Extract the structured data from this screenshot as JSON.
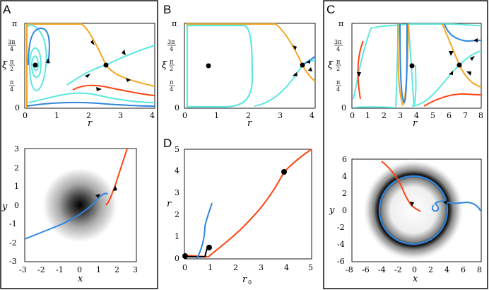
{
  "panels": {
    "A": "A",
    "B": "B",
    "C": "C",
    "D": "D"
  },
  "colors": {
    "orange": "#f5a623",
    "cyan": "#5ce8e0",
    "blue": "#2e86de",
    "red": "#ff4411",
    "black": "#000000"
  },
  "labels": {
    "xi": "ξ",
    "r": "r",
    "x": "x",
    "y": "y",
    "r0": "r",
    "r0_sub": "0"
  },
  "ticks": {
    "pi": "π",
    "three_pi_4_num": "3π",
    "four": "4",
    "pi_2_num": "π",
    "two": "2",
    "pi_4_num": "π",
    "zero": "0",
    "a_r": [
      "0",
      "1",
      "2",
      "3",
      "4"
    ],
    "b_r": [
      "0",
      "1",
      "2",
      "3",
      "4"
    ],
    "c_r": [
      "0",
      "1",
      "2",
      "3",
      "4",
      "5",
      "6",
      "7",
      "8"
    ],
    "a_xy_x": [
      "-3",
      "-2",
      "-1",
      "0",
      "1",
      "2",
      "3"
    ],
    "a_xy_y": [
      "3",
      "2",
      "1",
      "0",
      "-1",
      "-2",
      "-3"
    ],
    "d_x": [
      "0",
      "1",
      "2",
      "3",
      "4",
      "5"
    ],
    "d_y": [
      "5",
      "4",
      "3",
      "2",
      "1",
      "0"
    ],
    "c_xy_x": [
      "-8",
      "-6",
      "-4",
      "-2",
      "0",
      "2",
      "4",
      "6",
      "8"
    ],
    "c_xy_y": [
      "6",
      "4",
      "2",
      "0",
      "-2",
      "-4",
      "-6"
    ]
  }
}
